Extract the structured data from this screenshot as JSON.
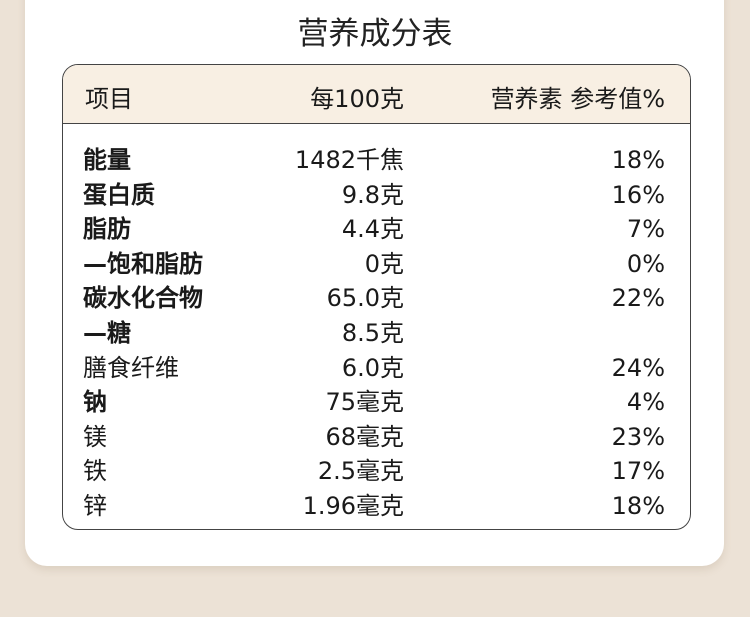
{
  "title": "营养成分表",
  "headers": {
    "item": "项目",
    "per100": "每100克",
    "nrv": "营养素 参考值%"
  },
  "rows": [
    {
      "name": "能量",
      "value": "1482千焦",
      "nrv": "18%",
      "bold": true
    },
    {
      "name": "蛋白质",
      "value": "9.8克",
      "nrv": "16%",
      "bold": true
    },
    {
      "name": "脂肪",
      "value": "4.4克",
      "nrv": "7%",
      "bold": true
    },
    {
      "name": "—饱和脂肪",
      "value": "0克",
      "nrv": "0%",
      "bold": true
    },
    {
      "name": "碳水化合物",
      "value": "65.0克",
      "nrv": "22%",
      "bold": true
    },
    {
      "name": "—糖",
      "value": "8.5克",
      "nrv": "",
      "bold": true
    },
    {
      "name": "膳食纤维",
      "value": "6.0克",
      "nrv": "24%",
      "bold": false
    },
    {
      "name": "钠",
      "value": "75毫克",
      "nrv": "4%",
      "bold": true
    },
    {
      "name": "镁",
      "value": "68毫克",
      "nrv": "23%",
      "bold": false
    },
    {
      "name": "铁",
      "value": "2.5毫克",
      "nrv": "17%",
      "bold": false
    },
    {
      "name": "锌",
      "value": "1.96毫克",
      "nrv": "18%",
      "bold": false
    }
  ],
  "colors": {
    "background": "#ece2d6",
    "header_band": "#f8efe3",
    "border": "#444444"
  }
}
